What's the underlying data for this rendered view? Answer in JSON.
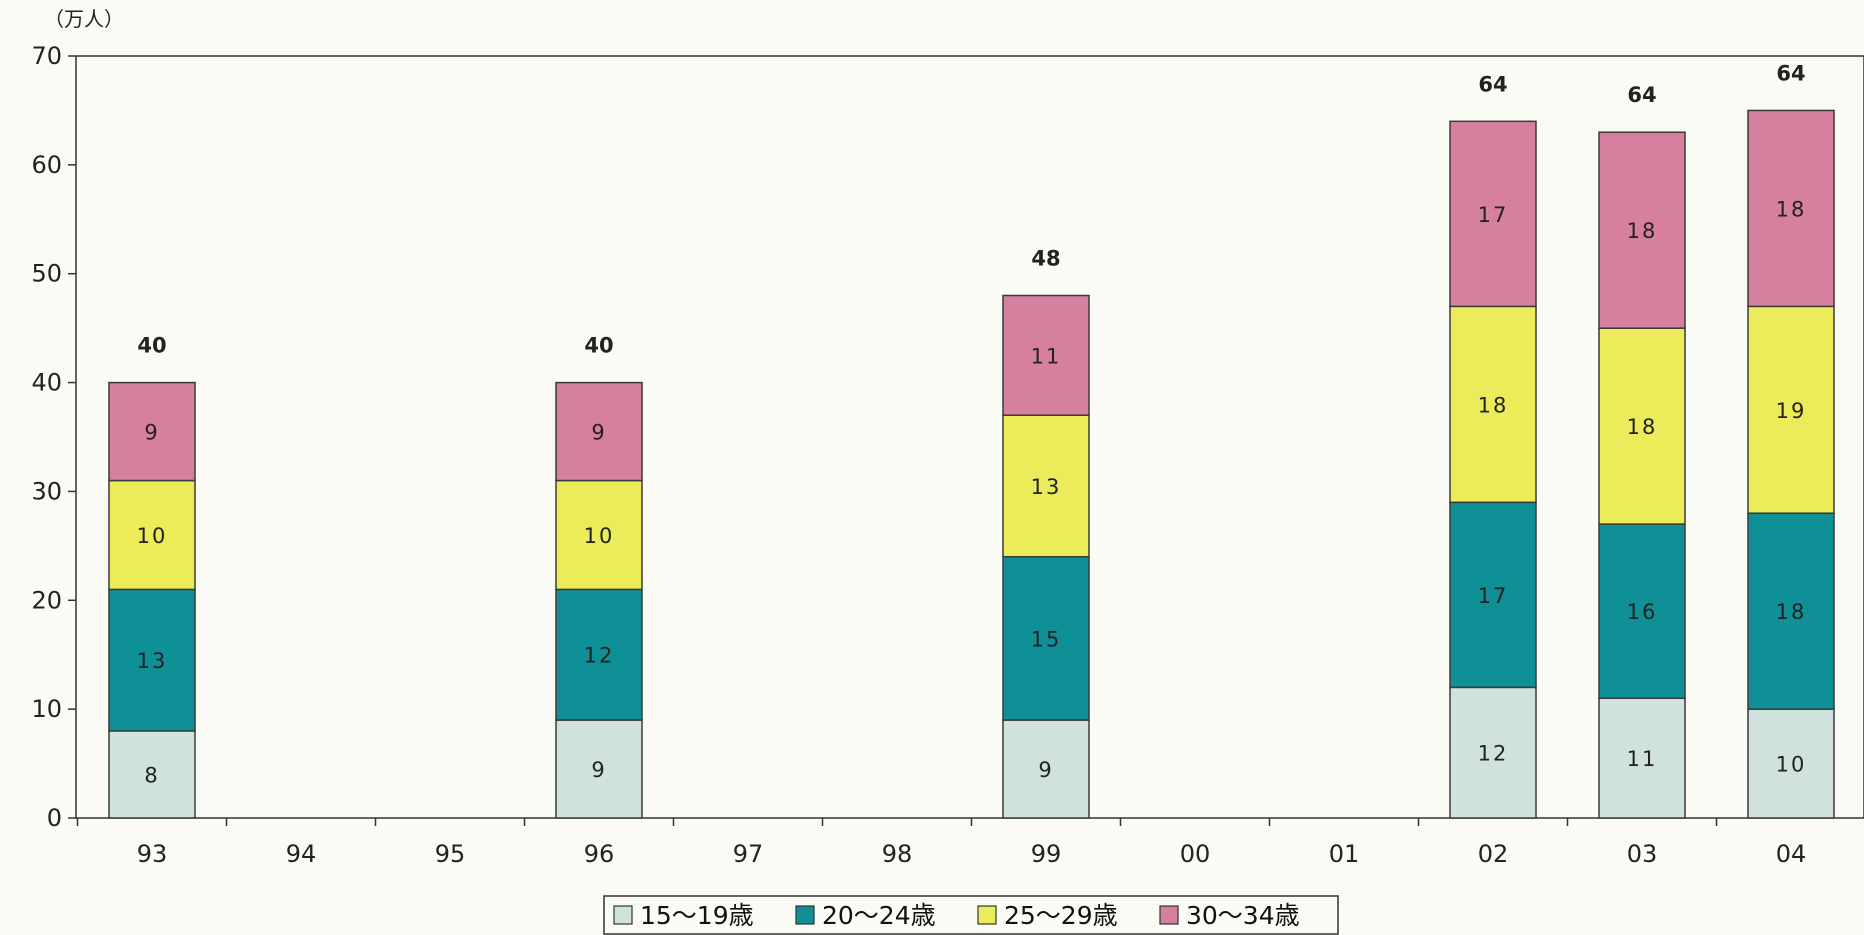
{
  "chart_data": {
    "type": "bar",
    "stacked": true,
    "unit_label": "（万人）",
    "ylim": [
      0,
      70
    ],
    "y_ticks": [
      0,
      10,
      20,
      30,
      40,
      50,
      60,
      70
    ],
    "categories": [
      "93",
      "94",
      "95",
      "96",
      "97",
      "98",
      "99",
      "00",
      "01",
      "02",
      "03",
      "04"
    ],
    "series": [
      {
        "name": "15～19歳",
        "color": "#cfe3dc",
        "values": [
          8,
          null,
          null,
          9,
          null,
          null,
          9,
          null,
          null,
          12,
          11,
          10
        ]
      },
      {
        "name": "20～24歳",
        "color": "#0f8f96",
        "values": [
          13,
          null,
          null,
          12,
          null,
          null,
          15,
          null,
          null,
          17,
          16,
          18
        ]
      },
      {
        "name": "25～29歳",
        "color": "#ecec5a",
        "values": [
          10,
          null,
          null,
          10,
          null,
          null,
          13,
          null,
          null,
          18,
          18,
          19
        ]
      },
      {
        "name": "30～34歳",
        "color": "#d77f9e",
        "values": [
          9,
          null,
          null,
          9,
          null,
          null,
          11,
          null,
          null,
          17,
          18,
          18
        ]
      }
    ],
    "totals": [
      40,
      null,
      null,
      40,
      null,
      null,
      48,
      null,
      null,
      64,
      64,
      64
    ],
    "grid": false,
    "legend_position": "bottom"
  }
}
